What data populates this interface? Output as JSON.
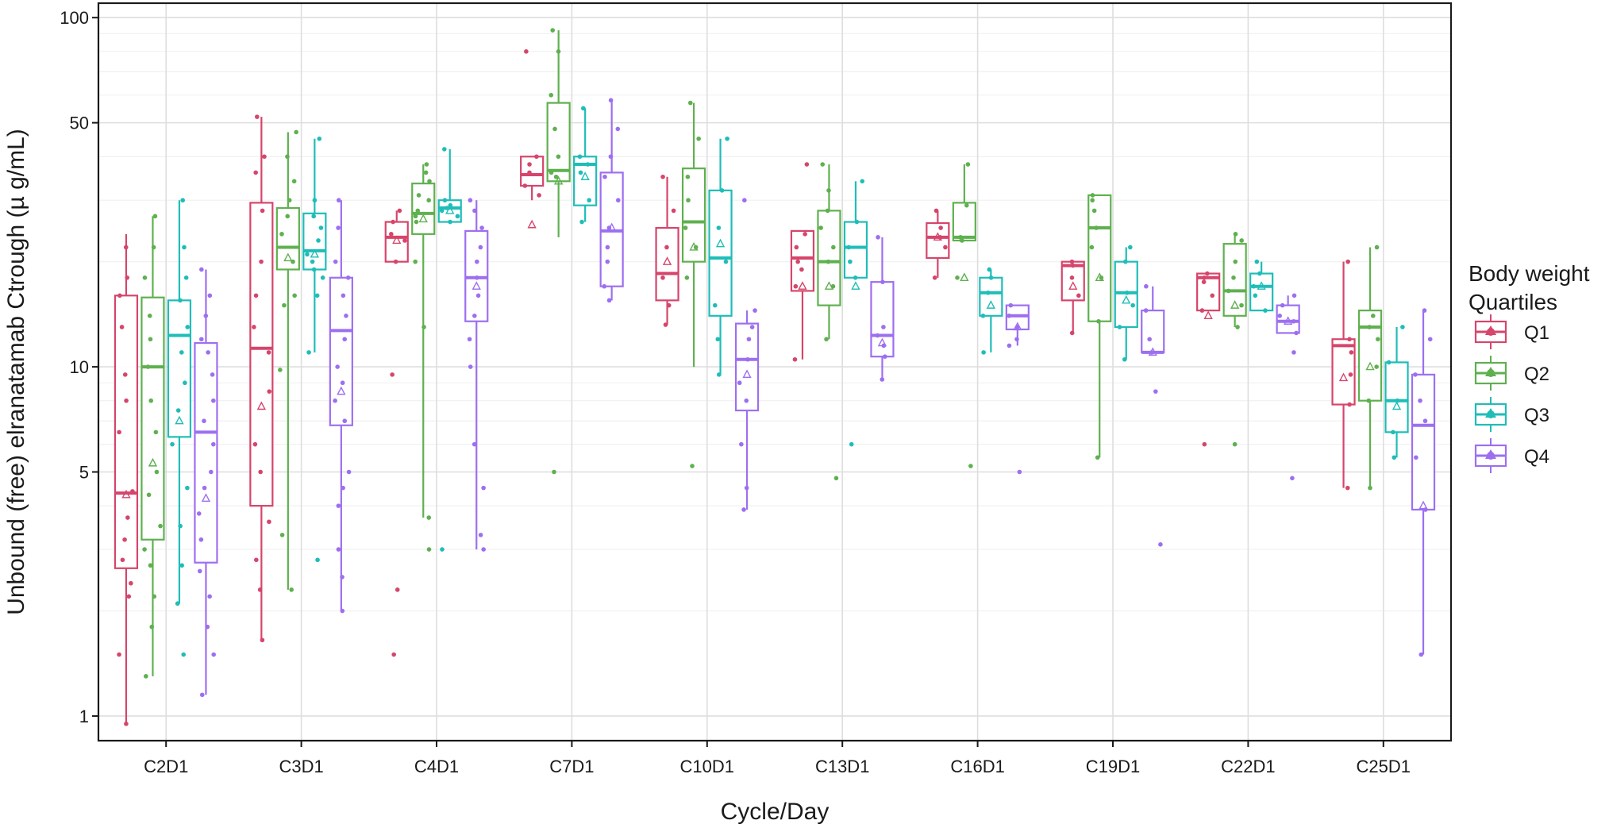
{
  "chart_data": {
    "type": "boxplot",
    "title": "",
    "xlabel": "Cycle/Day",
    "ylabel": "Unbound (free) elranatamab Ctrough (µ g/mL)",
    "yscale": "log10",
    "ylim": [
      0.85,
      110
    ],
    "ytick_values": [
      1,
      5,
      10,
      50,
      100
    ],
    "ytick_labels": [
      "1",
      "5",
      "10",
      "50",
      "100"
    ],
    "categories": [
      "C2D1",
      "C3D1",
      "C4D1",
      "C7D1",
      "C10D1",
      "C13D1",
      "C16D1",
      "C19D1",
      "C22D1",
      "C25D1"
    ],
    "grid": true,
    "legend": {
      "title_lines": [
        "Body weight",
        "Quartiles"
      ],
      "position": "right"
    },
    "series": [
      {
        "name": "Q1",
        "color": "#d6456b",
        "boxes": [
          {
            "lo": 0.95,
            "q1": 2.65,
            "med": 4.35,
            "q3": 16.0,
            "hi": 24.0,
            "mean": 4.3
          },
          {
            "lo": 1.65,
            "q1": 4.0,
            "med": 11.3,
            "q3": 29.5,
            "hi": 52.0,
            "mean": 7.7
          },
          {
            "lo": 20.0,
            "q1": 20.0,
            "med": 23.5,
            "q3": 26.0,
            "hi": 28.0,
            "mean": 23.0
          },
          {
            "lo": 30.0,
            "q1": 33.0,
            "med": 35.5,
            "q3": 40.0,
            "hi": 40.0,
            "mean": 25.5
          },
          {
            "lo": 13.2,
            "q1": 15.5,
            "med": 18.5,
            "q3": 25.0,
            "hi": 35.0,
            "mean": 20.0
          },
          {
            "lo": 10.5,
            "q1": 16.5,
            "med": 20.5,
            "q3": 24.5,
            "hi": 24.5,
            "mean": 17.0
          },
          {
            "lo": 18.0,
            "q1": 20.5,
            "med": 23.5,
            "q3": 25.8,
            "hi": 28.0,
            "mean": 23.5
          },
          {
            "lo": 12.5,
            "q1": 15.5,
            "med": 19.5,
            "q3": 20.0,
            "hi": 20.0,
            "mean": 17.0
          },
          {
            "lo": 14.5,
            "q1": 14.5,
            "med": 18.0,
            "q3": 18.5,
            "hi": 18.5,
            "mean": 14.0
          },
          {
            "lo": 4.5,
            "q1": 7.8,
            "med": 11.5,
            "q3": 12.0,
            "hi": 20.0,
            "mean": 9.3
          }
        ],
        "points": [
          [
            22,
            18,
            16,
            13,
            9.5,
            8,
            6.5,
            4.4,
            3.7,
            3.2,
            2.8,
            2.4,
            2.2,
            1.5,
            0.95
          ],
          [
            52,
            40,
            36,
            28,
            20,
            16,
            13,
            11,
            8.5,
            6,
            5,
            3.6,
            2.8,
            2.3,
            1.65
          ],
          [
            28,
            26,
            24,
            23,
            20,
            9.5,
            2.3,
            1.5
          ],
          [
            80,
            40,
            38,
            36,
            33,
            31
          ],
          [
            35,
            28,
            22,
            18,
            15,
            13.2
          ],
          [
            38,
            24,
            22,
            20,
            19,
            17,
            10.5
          ],
          [
            28,
            25,
            23.5,
            22,
            18
          ],
          [
            20,
            19.5,
            18,
            16,
            12.5
          ],
          [
            18.5,
            18,
            17.5,
            16,
            14.5,
            6.0
          ],
          [
            20,
            12,
            11,
            9.5,
            7.8,
            4.5
          ]
        ]
      },
      {
        "name": "Q2",
        "color": "#5fb04f",
        "boxes": [
          {
            "lo": 1.3,
            "q1": 3.2,
            "med": 10.0,
            "q3": 15.8,
            "hi": 27.0,
            "mean": 5.3
          },
          {
            "lo": 2.3,
            "q1": 19.0,
            "med": 22.0,
            "q3": 28.5,
            "hi": 47.0,
            "mean": 20.5
          },
          {
            "lo": 3.7,
            "q1": 24.0,
            "med": 27.5,
            "q3": 33.5,
            "hi": 38.0,
            "mean": 26.5
          },
          {
            "lo": 23.5,
            "q1": 34.0,
            "med": 36.5,
            "q3": 57.0,
            "hi": 92.0,
            "mean": 34.0
          },
          {
            "lo": 10.0,
            "q1": 20.0,
            "med": 26.0,
            "q3": 37.0,
            "hi": 57.0,
            "mean": 22.0
          },
          {
            "lo": 12.0,
            "q1": 15.0,
            "med": 20.0,
            "q3": 28.0,
            "hi": 38.0,
            "mean": 17.0
          },
          {
            "lo": 23.0,
            "q1": 23.0,
            "med": 23.5,
            "q3": 29.5,
            "hi": 38.0,
            "mean": 18.0
          },
          {
            "lo": 5.5,
            "q1": 13.5,
            "med": 25.0,
            "q3": 31.0,
            "hi": 31.0,
            "mean": 18.0
          },
          {
            "lo": 13.0,
            "q1": 14.0,
            "med": 16.5,
            "q3": 22.5,
            "hi": 24.0,
            "mean": 15.0
          },
          {
            "lo": 4.5,
            "q1": 8.0,
            "med": 13.0,
            "q3": 14.5,
            "hi": 22.0,
            "mean": 10.0
          }
        ],
        "points": [
          [
            27,
            22,
            18,
            14,
            12,
            10,
            8,
            6.5,
            5,
            4.3,
            3.5,
            3.0,
            2.7,
            2.2,
            1.8,
            1.3
          ],
          [
            47,
            40,
            34,
            30,
            27,
            24,
            20,
            16,
            15,
            9.8,
            3.3,
            2.3
          ],
          [
            38,
            36,
            34,
            31,
            30,
            28,
            27,
            26,
            20,
            13,
            3.7,
            3.0
          ],
          [
            92,
            80,
            60,
            48,
            40,
            36,
            35,
            5.0
          ],
          [
            57,
            45,
            35,
            30,
            25,
            22,
            18,
            5.2
          ],
          [
            38,
            32,
            28,
            25,
            22,
            20,
            17,
            12,
            4.8
          ],
          [
            38,
            29,
            23.5,
            23,
            18,
            5.2
          ],
          [
            31,
            30,
            28,
            25,
            22,
            18,
            13.5,
            5.5
          ],
          [
            24,
            23,
            20,
            18,
            16.5,
            15,
            13,
            6.0
          ],
          [
            22,
            14,
            13,
            12,
            10,
            8,
            4.5
          ]
        ]
      },
      {
        "name": "Q3",
        "color": "#1fbdb8",
        "boxes": [
          {
            "lo": 2.1,
            "q1": 6.3,
            "med": 12.3,
            "q3": 15.5,
            "hi": 30.0,
            "mean": 7.0
          },
          {
            "lo": 11.0,
            "q1": 19.0,
            "med": 21.5,
            "q3": 27.5,
            "hi": 45.0,
            "mean": 21.0
          },
          {
            "lo": 26.0,
            "q1": 26.0,
            "med": 28.5,
            "q3": 30.0,
            "hi": 42.0,
            "mean": 28.0
          },
          {
            "lo": 26.0,
            "q1": 29.0,
            "med": 38.0,
            "q3": 40.0,
            "hi": 55.0,
            "mean": 35.0
          },
          {
            "lo": 9.5,
            "q1": 14.0,
            "med": 20.5,
            "q3": 32.0,
            "hi": 45.0,
            "mean": 22.5
          },
          {
            "lo": 18.0,
            "q1": 18.0,
            "med": 22.0,
            "q3": 26.0,
            "hi": 34.0,
            "mean": 17.0
          },
          {
            "lo": 11.0,
            "q1": 14.0,
            "med": 16.3,
            "q3": 18.0,
            "hi": 19.0,
            "mean": 15.0
          },
          {
            "lo": 10.5,
            "q1": 13.0,
            "med": 16.3,
            "q3": 20.0,
            "hi": 22.0,
            "mean": 15.5
          },
          {
            "lo": 14.5,
            "q1": 14.5,
            "med": 17.0,
            "q3": 18.5,
            "hi": 20.0,
            "mean": 17.0
          },
          {
            "lo": 5.5,
            "q1": 6.5,
            "med": 8.0,
            "q3": 10.3,
            "hi": 13.0,
            "mean": 7.7
          }
        ],
        "points": [
          [
            30,
            22,
            18,
            15.5,
            13,
            11,
            9,
            7.5,
            6,
            4.5,
            3.5,
            2.7,
            2.1,
            1.5
          ],
          [
            45,
            30,
            27,
            25,
            23,
            21,
            20,
            19,
            18,
            16,
            11,
            2.8
          ],
          [
            42,
            30,
            29,
            28.5,
            28,
            27,
            26,
            3.0
          ],
          [
            55,
            40,
            38,
            36,
            30,
            26
          ],
          [
            45,
            32,
            25,
            20,
            15,
            12,
            9.5
          ],
          [
            34,
            26,
            22,
            20,
            18,
            6.0
          ],
          [
            19,
            18,
            16.3,
            14,
            11
          ],
          [
            22,
            20,
            16.3,
            15,
            13,
            10.5
          ],
          [
            20,
            18.5,
            17,
            16,
            14.5
          ],
          [
            13,
            10.3,
            8,
            6.5,
            5.5
          ]
        ]
      },
      {
        "name": "Q4",
        "color": "#9d6ff0",
        "boxes": [
          {
            "lo": 1.15,
            "q1": 2.75,
            "med": 6.5,
            "q3": 11.7,
            "hi": 19.0,
            "mean": 4.2
          },
          {
            "lo": 2.0,
            "q1": 6.8,
            "med": 12.7,
            "q3": 18.0,
            "hi": 30.0,
            "mean": 8.5
          },
          {
            "lo": 3.0,
            "q1": 13.5,
            "med": 18.0,
            "q3": 24.5,
            "hi": 30.0,
            "mean": 17.0
          },
          {
            "lo": 15.5,
            "q1": 17.0,
            "med": 24.5,
            "q3": 36.0,
            "hi": 58.0,
            "mean": 25.0
          },
          {
            "lo": 3.9,
            "q1": 7.5,
            "med": 10.5,
            "q3": 13.3,
            "hi": 14.5,
            "mean": 9.5
          },
          {
            "lo": 9.2,
            "q1": 10.7,
            "med": 12.3,
            "q3": 17.5,
            "hi": 23.5,
            "mean": 11.7
          },
          {
            "lo": 11.5,
            "q1": 12.8,
            "med": 14.0,
            "q3": 15.0,
            "hi": 15.0,
            "mean": 13.0
          },
          {
            "lo": 11.0,
            "q1": 11.0,
            "med": 11.0,
            "q3": 14.5,
            "hi": 17.0,
            "mean": 11.0
          },
          {
            "lo": 12.5,
            "q1": 12.5,
            "med": 13.5,
            "q3": 15.0,
            "hi": 16.0,
            "mean": 13.5
          },
          {
            "lo": 1.5,
            "q1": 3.9,
            "med": 6.8,
            "q3": 9.5,
            "hi": 14.5,
            "mean": 4.0
          }
        ],
        "points": [
          [
            19,
            16,
            14,
            12,
            11,
            9.5,
            8,
            7,
            6,
            5,
            4.5,
            3.8,
            3.2,
            2.6,
            2.2,
            1.8,
            1.5,
            1.15
          ],
          [
            30,
            25,
            20,
            18,
            16,
            14,
            12,
            10,
            9,
            8,
            7,
            5,
            4.5,
            4,
            3,
            2.5,
            2.0
          ],
          [
            30,
            28,
            25,
            22,
            20,
            18,
            16,
            14,
            12,
            10,
            6,
            4.5,
            3.3,
            3.0
          ],
          [
            58,
            48,
            40,
            35,
            30,
            25,
            22,
            20,
            17,
            15.5
          ],
          [
            30,
            14.5,
            13,
            12,
            10.5,
            9,
            8,
            6,
            4.5,
            3.9
          ],
          [
            23.5,
            17.5,
            13,
            12.3,
            11.5,
            10.7,
            9.2
          ],
          [
            15,
            14,
            13,
            12,
            11.5,
            5.0
          ],
          [
            17,
            14.5,
            12,
            11,
            8.5,
            3.1
          ],
          [
            16,
            15,
            14,
            13.5,
            12.5,
            11,
            4.8
          ],
          [
            14.5,
            12,
            9.5,
            8,
            7,
            5.5,
            3.9,
            1.5
          ]
        ]
      }
    ]
  }
}
